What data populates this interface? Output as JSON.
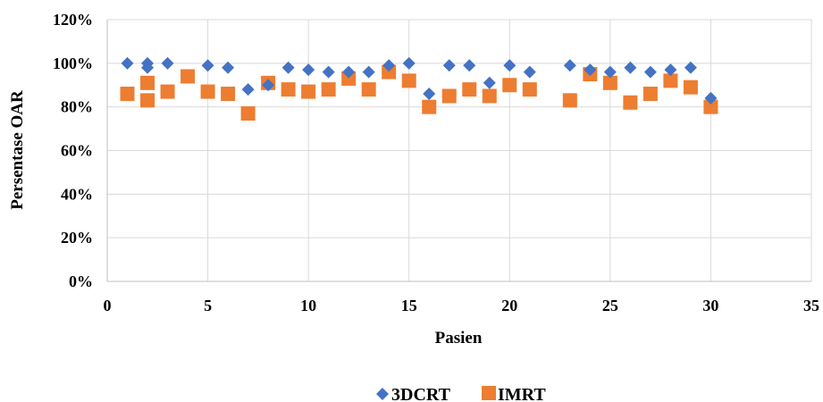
{
  "chart_data": {
    "type": "scatter",
    "title": "",
    "xlabel": "Pasien",
    "ylabel": "Persentase OAR",
    "xlim": [
      0,
      35
    ],
    "ylim": [
      0,
      1.2
    ],
    "x_ticks": [
      "0",
      "5",
      "10",
      "15",
      "20",
      "25",
      "30",
      "35"
    ],
    "y_ticks": [
      "0%",
      "20%",
      "40%",
      "60%",
      "80%",
      "100%",
      "120%"
    ],
    "grid": "both",
    "legend_position": "bottom",
    "series": [
      {
        "name": "3DCRT",
        "color": "#4472c4",
        "marker": "diamond",
        "points": [
          [
            1,
            1.0
          ],
          [
            2,
            1.0
          ],
          [
            2,
            0.98
          ],
          [
            3,
            1.0
          ],
          [
            5,
            0.99
          ],
          [
            6,
            0.98
          ],
          [
            7,
            0.88
          ],
          [
            8,
            0.9
          ],
          [
            9,
            0.98
          ],
          [
            10,
            0.97
          ],
          [
            11,
            0.96
          ],
          [
            12,
            0.96
          ],
          [
            13,
            0.96
          ],
          [
            14,
            0.99
          ],
          [
            15,
            1.0
          ],
          [
            16,
            0.86
          ],
          [
            17,
            0.99
          ],
          [
            18,
            0.99
          ],
          [
            19,
            0.91
          ],
          [
            20,
            0.99
          ],
          [
            21,
            0.96
          ],
          [
            23,
            0.99
          ],
          [
            24,
            0.97
          ],
          [
            25,
            0.96
          ],
          [
            26,
            0.98
          ],
          [
            27,
            0.96
          ],
          [
            28,
            0.97
          ],
          [
            29,
            0.98
          ],
          [
            30,
            0.84
          ]
        ]
      },
      {
        "name": "IMRT",
        "color": "#ed7d31",
        "marker": "square",
        "points": [
          [
            1,
            0.86
          ],
          [
            2,
            0.91
          ],
          [
            2,
            0.83
          ],
          [
            3,
            0.87
          ],
          [
            4,
            0.94
          ],
          [
            5,
            0.87
          ],
          [
            6,
            0.86
          ],
          [
            7,
            0.77
          ],
          [
            8,
            0.91
          ],
          [
            9,
            0.88
          ],
          [
            10,
            0.87
          ],
          [
            11,
            0.88
          ],
          [
            12,
            0.93
          ],
          [
            13,
            0.88
          ],
          [
            14,
            0.96
          ],
          [
            15,
            0.92
          ],
          [
            16,
            0.8
          ],
          [
            17,
            0.85
          ],
          [
            18,
            0.88
          ],
          [
            19,
            0.85
          ],
          [
            20,
            0.9
          ],
          [
            21,
            0.88
          ],
          [
            23,
            0.83
          ],
          [
            24,
            0.95
          ],
          [
            25,
            0.91
          ],
          [
            26,
            0.82
          ],
          [
            27,
            0.86
          ],
          [
            28,
            0.92
          ],
          [
            29,
            0.89
          ],
          [
            30,
            0.8
          ]
        ]
      }
    ]
  }
}
